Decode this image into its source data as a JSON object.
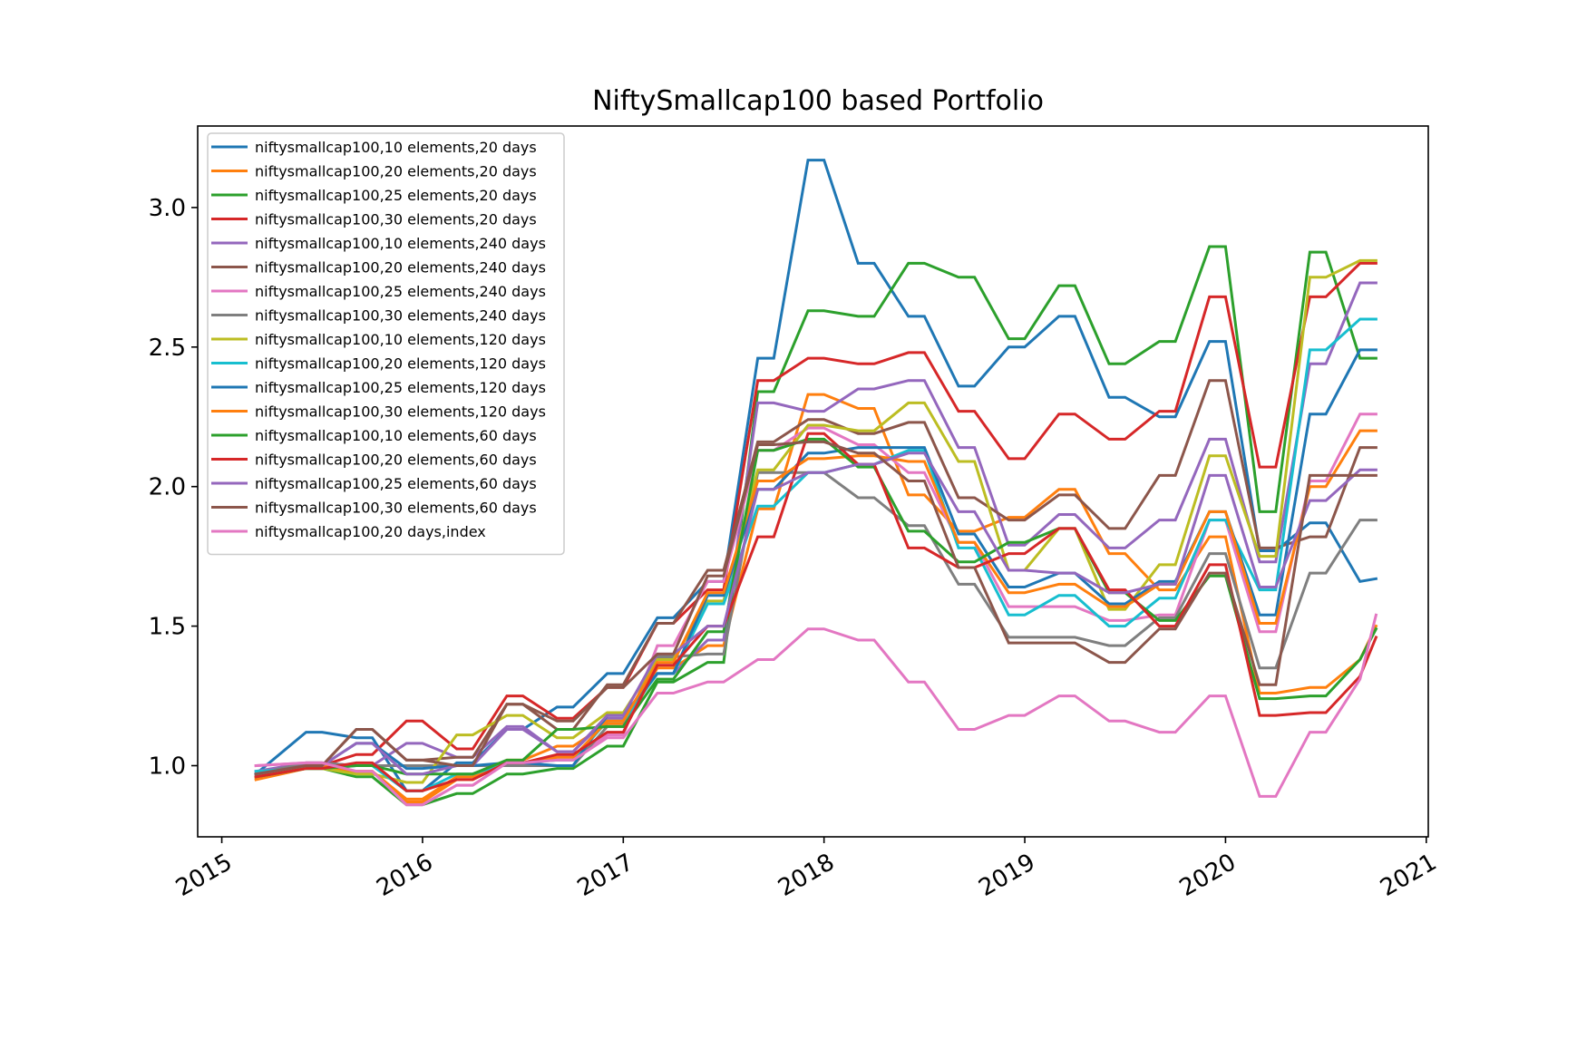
{
  "chart_data": {
    "type": "line",
    "title": "NiftySmallcap100 based Portfolio",
    "xlabel": "",
    "ylabel": "",
    "xlim": [
      2014.88,
      2021.01
    ],
    "ylim": [
      0.745,
      3.292
    ],
    "x_ticks": [
      2015,
      2016,
      2017,
      2018,
      2019,
      2020,
      2021
    ],
    "x_tick_labels": [
      "2015",
      "2016",
      "2017",
      "2018",
      "2019",
      "2020",
      "2021"
    ],
    "y_ticks": [
      1.0,
      1.5,
      2.0,
      2.5,
      3.0
    ],
    "y_tick_labels": [
      "1.0",
      "1.5",
      "2.0",
      "2.5",
      "3.0"
    ],
    "grid": false,
    "legend_position": "top-left",
    "x": [
      2015.17,
      2015.42,
      2015.5,
      2015.67,
      2015.75,
      2015.92,
      2016.0,
      2016.17,
      2016.25,
      2016.42,
      2016.5,
      2016.67,
      2016.75,
      2016.92,
      2017.0,
      2017.17,
      2017.25,
      2017.42,
      2017.5,
      2017.67,
      2017.75,
      2017.92,
      2018.0,
      2018.17,
      2018.25,
      2018.42,
      2018.5,
      2018.67,
      2018.75,
      2018.92,
      2019.0,
      2019.17,
      2019.25,
      2019.42,
      2019.5,
      2019.67,
      2019.75,
      2019.92,
      2020.0,
      2020.17,
      2020.25,
      2020.42,
      2020.5,
      2020.67,
      2020.75
    ],
    "series": [
      {
        "name": "niftysmallcap100,10 elements,20 days",
        "color": "#1f77b4",
        "values": [
          0.97,
          1.12,
          1.12,
          1.1,
          1.1,
          0.91,
          0.91,
          1.01,
          1.01,
          1.13,
          1.13,
          1.21,
          1.21,
          1.33,
          1.33,
          1.53,
          1.53,
          1.66,
          1.66,
          2.46,
          2.46,
          3.17,
          3.17,
          2.8,
          2.8,
          2.61,
          2.61,
          2.36,
          2.36,
          2.5,
          2.5,
          2.61,
          2.61,
          2.32,
          2.32,
          2.25,
          2.25,
          2.52,
          2.52,
          1.77,
          1.77,
          1.87,
          1.87,
          1.66,
          1.67
        ]
      },
      {
        "name": "niftysmallcap100,20 elements,20 days",
        "color": "#ff7f0e",
        "values": [
          0.95,
          0.99,
          0.99,
          0.98,
          0.98,
          0.88,
          0.88,
          0.96,
          0.96,
          1.02,
          1.02,
          1.07,
          1.07,
          1.15,
          1.15,
          1.35,
          1.35,
          1.43,
          1.43,
          1.92,
          1.92,
          2.33,
          2.33,
          2.28,
          2.28,
          1.97,
          1.97,
          1.84,
          1.84,
          1.89,
          1.89,
          1.99,
          1.99,
          1.76,
          1.76,
          1.63,
          1.63,
          1.82,
          1.82,
          1.26,
          1.26,
          1.28,
          1.28,
          1.38,
          1.5
        ]
      },
      {
        "name": "niftysmallcap100,25 elements,20 days",
        "color": "#2ca02c",
        "values": [
          0.96,
          0.99,
          0.99,
          0.96,
          0.96,
          0.86,
          0.86,
          0.9,
          0.9,
          0.97,
          0.97,
          0.99,
          0.99,
          1.07,
          1.07,
          1.3,
          1.3,
          1.37,
          1.37,
          2.34,
          2.34,
          2.63,
          2.63,
          2.61,
          2.61,
          2.8,
          2.8,
          2.75,
          2.75,
          2.53,
          2.53,
          2.72,
          2.72,
          2.44,
          2.44,
          2.52,
          2.52,
          2.86,
          2.86,
          1.91,
          1.91,
          2.84,
          2.84,
          2.46,
          2.46
        ]
      },
      {
        "name": "niftysmallcap100,30 elements,20 days",
        "color": "#d62728",
        "values": [
          0.97,
          1.0,
          1.0,
          1.04,
          1.04,
          1.16,
          1.16,
          1.06,
          1.06,
          1.25,
          1.25,
          1.17,
          1.17,
          1.28,
          1.28,
          1.51,
          1.51,
          1.63,
          1.63,
          2.38,
          2.38,
          2.46,
          2.46,
          2.44,
          2.44,
          2.48,
          2.48,
          2.27,
          2.27,
          2.1,
          2.1,
          2.26,
          2.26,
          2.17,
          2.17,
          2.27,
          2.27,
          2.68,
          2.68,
          2.07,
          2.07,
          2.68,
          2.68,
          2.8,
          2.8
        ]
      },
      {
        "name": "niftysmallcap100,10 elements,240 days",
        "color": "#9467bd",
        "values": [
          0.98,
          1.01,
          1.01,
          1.0,
          1.0,
          1.08,
          1.08,
          1.03,
          1.03,
          1.14,
          1.14,
          1.05,
          1.05,
          1.17,
          1.17,
          1.33,
          1.33,
          1.45,
          1.45,
          2.3,
          2.3,
          2.27,
          2.27,
          2.35,
          2.35,
          2.38,
          2.38,
          2.14,
          2.14,
          1.79,
          1.79,
          1.9,
          1.9,
          1.78,
          1.78,
          1.88,
          1.88,
          2.17,
          2.17,
          1.73,
          1.73,
          2.44,
          2.44,
          2.73,
          2.73
        ]
      },
      {
        "name": "niftysmallcap100,20 elements,240 days",
        "color": "#8c564b",
        "values": [
          0.97,
          1.0,
          1.0,
          1.13,
          1.13,
          1.02,
          1.02,
          1.03,
          1.03,
          1.22,
          1.22,
          1.13,
          1.13,
          1.29,
          1.29,
          1.51,
          1.51,
          1.7,
          1.7,
          2.16,
          2.16,
          2.24,
          2.24,
          2.19,
          2.19,
          2.23,
          2.23,
          1.96,
          1.96,
          1.88,
          1.88,
          1.97,
          1.97,
          1.85,
          1.85,
          2.04,
          2.04,
          2.38,
          2.38,
          1.78,
          1.78,
          1.82,
          1.82,
          2.14,
          2.14
        ]
      },
      {
        "name": "niftysmallcap100,25 elements,240 days",
        "color": "#e377c2",
        "values": [
          1.0,
          1.01,
          1.01,
          0.98,
          0.98,
          0.86,
          0.86,
          0.93,
          0.93,
          1.01,
          1.01,
          1.03,
          1.03,
          1.11,
          1.11,
          1.43,
          1.43,
          1.66,
          1.66,
          2.13,
          2.13,
          2.21,
          2.21,
          2.15,
          2.15,
          2.05,
          2.05,
          1.8,
          1.8,
          1.57,
          1.57,
          1.57,
          1.57,
          1.52,
          1.52,
          1.54,
          1.54,
          1.88,
          1.88,
          1.48,
          1.48,
          2.02,
          2.02,
          2.26,
          2.26
        ]
      },
      {
        "name": "niftysmallcap100,30 elements,240 days",
        "color": "#7f7f7f",
        "values": [
          0.97,
          1.01,
          1.01,
          1.0,
          1.0,
          1.0,
          1.0,
          1.0,
          1.0,
          1.0,
          1.0,
          1.0,
          1.0,
          1.14,
          1.14,
          1.39,
          1.39,
          1.4,
          1.4,
          2.05,
          2.05,
          2.05,
          2.05,
          1.96,
          1.96,
          1.86,
          1.86,
          1.65,
          1.65,
          1.46,
          1.46,
          1.46,
          1.46,
          1.43,
          1.43,
          1.53,
          1.53,
          1.76,
          1.76,
          1.35,
          1.35,
          1.69,
          1.69,
          1.88,
          1.88
        ]
      },
      {
        "name": "niftysmallcap100,10 elements,120 days",
        "color": "#bcbd22",
        "values": [
          0.96,
          0.99,
          0.99,
          0.97,
          0.97,
          0.94,
          0.94,
          1.11,
          1.11,
          1.18,
          1.18,
          1.1,
          1.1,
          1.19,
          1.19,
          1.38,
          1.38,
          1.59,
          1.59,
          2.06,
          2.06,
          2.22,
          2.22,
          2.2,
          2.2,
          2.3,
          2.3,
          2.09,
          2.09,
          1.7,
          1.7,
          1.85,
          1.85,
          1.56,
          1.56,
          1.72,
          1.72,
          2.11,
          2.11,
          1.75,
          1.75,
          2.75,
          2.75,
          2.81,
          2.81
        ]
      },
      {
        "name": "niftysmallcap100,20 elements,120 days",
        "color": "#17becf",
        "values": [
          0.98,
          0.99,
          0.99,
          1.0,
          1.0,
          0.91,
          0.91,
          0.97,
          0.97,
          1.01,
          1.01,
          1.02,
          1.02,
          1.16,
          1.16,
          1.33,
          1.33,
          1.58,
          1.58,
          1.93,
          1.93,
          2.05,
          2.05,
          2.08,
          2.08,
          2.13,
          2.13,
          1.78,
          1.78,
          1.54,
          1.54,
          1.61,
          1.61,
          1.5,
          1.5,
          1.6,
          1.6,
          1.88,
          1.88,
          1.63,
          1.63,
          2.49,
          2.49,
          2.6,
          2.6
        ]
      },
      {
        "name": "niftysmallcap100,25 elements,120 days",
        "color": "#1f77b4",
        "values": [
          0.97,
          1.0,
          1.0,
          1.08,
          1.08,
          0.99,
          0.99,
          1.0,
          1.0,
          1.01,
          1.01,
          1.0,
          1.0,
          1.18,
          1.18,
          1.33,
          1.33,
          1.61,
          1.61,
          1.99,
          1.99,
          2.12,
          2.12,
          2.14,
          2.14,
          2.14,
          2.14,
          1.83,
          1.83,
          1.64,
          1.64,
          1.69,
          1.69,
          1.58,
          1.58,
          1.66,
          1.66,
          1.91,
          1.91,
          1.54,
          1.54,
          2.26,
          2.26,
          2.49,
          2.49
        ]
      },
      {
        "name": "niftysmallcap100,30 elements,120 days",
        "color": "#ff7f0e",
        "values": [
          0.96,
          1.0,
          1.0,
          0.98,
          0.98,
          0.87,
          0.87,
          0.95,
          0.95,
          1.01,
          1.01,
          1.03,
          1.03,
          1.16,
          1.16,
          1.37,
          1.37,
          1.62,
          1.62,
          2.02,
          2.02,
          2.1,
          2.1,
          2.11,
          2.11,
          2.09,
          2.09,
          1.8,
          1.8,
          1.62,
          1.62,
          1.65,
          1.65,
          1.57,
          1.57,
          1.65,
          1.65,
          1.91,
          1.91,
          1.51,
          1.51,
          2.0,
          2.0,
          2.2,
          2.2
        ]
      },
      {
        "name": "niftysmallcap100,10 elements,60 days",
        "color": "#2ca02c",
        "values": [
          0.96,
          0.99,
          0.99,
          1.0,
          1.0,
          0.97,
          0.97,
          0.97,
          0.97,
          1.02,
          1.02,
          1.13,
          1.13,
          1.14,
          1.14,
          1.31,
          1.31,
          1.48,
          1.48,
          2.13,
          2.13,
          2.17,
          2.17,
          2.07,
          2.07,
          1.84,
          1.84,
          1.73,
          1.73,
          1.8,
          1.8,
          1.85,
          1.85,
          1.62,
          1.62,
          1.52,
          1.52,
          1.68,
          1.68,
          1.24,
          1.24,
          1.25,
          1.25,
          1.38,
          1.49
        ]
      },
      {
        "name": "niftysmallcap100,20 elements,60 days",
        "color": "#d62728",
        "values": [
          0.96,
          0.99,
          0.99,
          1.01,
          1.01,
          0.91,
          0.91,
          0.95,
          0.95,
          1.01,
          1.01,
          1.04,
          1.04,
          1.12,
          1.12,
          1.36,
          1.36,
          1.5,
          1.5,
          1.82,
          1.82,
          2.19,
          2.19,
          2.08,
          2.08,
          1.78,
          1.78,
          1.71,
          1.71,
          1.76,
          1.76,
          1.85,
          1.85,
          1.63,
          1.63,
          1.5,
          1.5,
          1.72,
          1.72,
          1.18,
          1.18,
          1.19,
          1.19,
          1.32,
          1.46
        ]
      },
      {
        "name": "niftysmallcap100,25 elements,60 days",
        "color": "#9467bd",
        "values": [
          0.97,
          1.0,
          1.0,
          1.08,
          1.08,
          0.97,
          0.97,
          1.0,
          1.0,
          1.13,
          1.13,
          1.05,
          1.05,
          1.18,
          1.18,
          1.4,
          1.4,
          1.5,
          1.5,
          1.99,
          1.99,
          2.05,
          2.05,
          2.08,
          2.08,
          2.12,
          2.12,
          1.91,
          1.91,
          1.7,
          1.7,
          1.69,
          1.69,
          1.62,
          1.62,
          1.65,
          1.65,
          2.04,
          2.04,
          1.64,
          1.64,
          1.95,
          1.95,
          2.06,
          2.06
        ]
      },
      {
        "name": "niftysmallcap100,30 elements,60 days",
        "color": "#8c564b",
        "values": [
          0.97,
          1.0,
          1.0,
          1.13,
          1.13,
          1.02,
          1.02,
          1.0,
          1.0,
          1.22,
          1.22,
          1.16,
          1.16,
          1.28,
          1.28,
          1.4,
          1.4,
          1.68,
          1.68,
          2.15,
          2.15,
          2.16,
          2.16,
          2.12,
          2.12,
          2.02,
          2.02,
          1.71,
          1.71,
          1.44,
          1.44,
          1.44,
          1.44,
          1.37,
          1.37,
          1.49,
          1.49,
          1.69,
          1.69,
          1.29,
          1.29,
          2.04,
          2.04,
          2.04,
          2.04
        ]
      },
      {
        "name": "niftysmallcap100,20 days,index",
        "color": "#e377c2",
        "values": [
          1.0,
          1.01,
          1.01,
          0.98,
          0.98,
          0.86,
          0.86,
          0.93,
          0.93,
          1.01,
          1.01,
          1.02,
          1.02,
          1.1,
          1.1,
          1.26,
          1.26,
          1.3,
          1.3,
          1.38,
          1.38,
          1.49,
          1.49,
          1.45,
          1.45,
          1.3,
          1.3,
          1.13,
          1.13,
          1.18,
          1.18,
          1.25,
          1.25,
          1.16,
          1.16,
          1.12,
          1.12,
          1.25,
          1.25,
          0.89,
          0.89,
          1.12,
          1.12,
          1.31,
          1.54
        ]
      }
    ]
  }
}
